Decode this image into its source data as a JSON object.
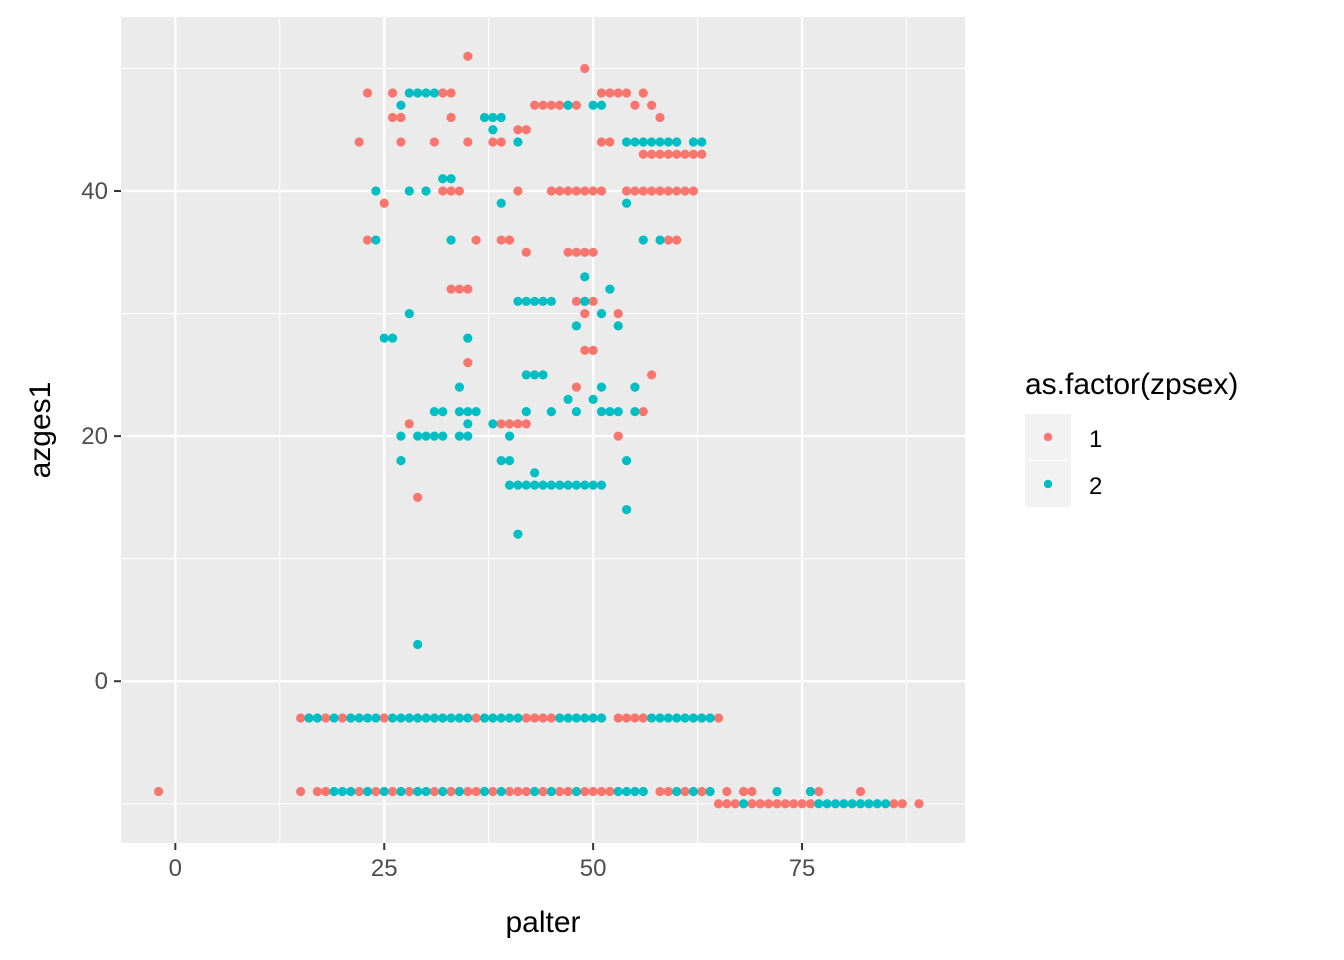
{
  "chart_data": {
    "type": "scatter",
    "title": "",
    "xlabel": "palter",
    "ylabel": "azges1",
    "xlim": [
      -6.5,
      94.5
    ],
    "ylim": [
      -13.2,
      54.2
    ],
    "x_ticks": [
      0,
      25,
      50,
      75
    ],
    "x_tick_labels": [
      "0",
      "25",
      "50",
      "75"
    ],
    "y_ticks": [
      0,
      20,
      40
    ],
    "y_tick_labels": [
      "0",
      "20",
      "40"
    ],
    "grid": true,
    "legend": {
      "title": "as.factor(zpsex)",
      "placement": "right",
      "entries": [
        "1",
        "2"
      ]
    },
    "series": [
      {
        "name": "1",
        "color": "#F8766D",
        "points": [
          [
            -2,
            -9
          ],
          [
            15,
            -3
          ],
          [
            18,
            -3
          ],
          [
            20,
            -3
          ],
          [
            25,
            -3
          ],
          [
            36,
            -3
          ],
          [
            42,
            -3
          ],
          [
            43,
            -3
          ],
          [
            44,
            -3
          ],
          [
            45,
            -3
          ],
          [
            53,
            -3
          ],
          [
            54,
            -3
          ],
          [
            55,
            -3
          ],
          [
            56,
            -3
          ],
          [
            65,
            -3
          ],
          [
            15,
            -9
          ],
          [
            17,
            -9
          ],
          [
            18,
            -9
          ],
          [
            22,
            -9
          ],
          [
            24,
            -9
          ],
          [
            26,
            -9
          ],
          [
            28,
            -9
          ],
          [
            31,
            -9
          ],
          [
            33,
            -9
          ],
          [
            35,
            -9
          ],
          [
            36,
            -9
          ],
          [
            38,
            -9
          ],
          [
            40,
            -9
          ],
          [
            41,
            -9
          ],
          [
            42,
            -9
          ],
          [
            44,
            -9
          ],
          [
            46,
            -9
          ],
          [
            47,
            -9
          ],
          [
            49,
            -9
          ],
          [
            50,
            -9
          ],
          [
            51,
            -9
          ],
          [
            52,
            -9
          ],
          [
            58,
            -9
          ],
          [
            59,
            -9
          ],
          [
            61,
            -9
          ],
          [
            63,
            -9
          ],
          [
            66,
            -9
          ],
          [
            68,
            -9
          ],
          [
            69,
            -9
          ],
          [
            77,
            -9
          ],
          [
            82,
            -9
          ],
          [
            65,
            -10
          ],
          [
            66,
            -10
          ],
          [
            67,
            -10
          ],
          [
            69,
            -10
          ],
          [
            70,
            -10
          ],
          [
            71,
            -10
          ],
          [
            72,
            -10
          ],
          [
            73,
            -10
          ],
          [
            74,
            -10
          ],
          [
            75,
            -10
          ],
          [
            76,
            -10
          ],
          [
            86,
            -10
          ],
          [
            87,
            -10
          ],
          [
            89,
            -10
          ],
          [
            29,
            15
          ],
          [
            53,
            20
          ],
          [
            42,
            21
          ],
          [
            41,
            21
          ],
          [
            40,
            21
          ],
          [
            28,
            21
          ],
          [
            39,
            21
          ],
          [
            56,
            22
          ],
          [
            48,
            24
          ],
          [
            35,
            26
          ],
          [
            49,
            27
          ],
          [
            50,
            27
          ],
          [
            57,
            25
          ],
          [
            33,
            32
          ],
          [
            34,
            32
          ],
          [
            35,
            32
          ],
          [
            50,
            31
          ],
          [
            48,
            31
          ],
          [
            49,
            31
          ],
          [
            49,
            30
          ],
          [
            53,
            30
          ],
          [
            23,
            36
          ],
          [
            36,
            36
          ],
          [
            39,
            36
          ],
          [
            40,
            36
          ],
          [
            42,
            35
          ],
          [
            47,
            35
          ],
          [
            48,
            35
          ],
          [
            49,
            35
          ],
          [
            50,
            35
          ],
          [
            59,
            36
          ],
          [
            60,
            36
          ],
          [
            25,
            39
          ],
          [
            41,
            40
          ],
          [
            45,
            40
          ],
          [
            46,
            40
          ],
          [
            47,
            40
          ],
          [
            48,
            40
          ],
          [
            49,
            40
          ],
          [
            50,
            40
          ],
          [
            51,
            40
          ],
          [
            54,
            40
          ],
          [
            56,
            40
          ],
          [
            57,
            40
          ],
          [
            58,
            40
          ],
          [
            59,
            40
          ],
          [
            60,
            40
          ],
          [
            61,
            40
          ],
          [
            62,
            40
          ],
          [
            55,
            40
          ],
          [
            32,
            40
          ],
          [
            33,
            40
          ],
          [
            34,
            40
          ],
          [
            22,
            44
          ],
          [
            27,
            44
          ],
          [
            31,
            44
          ],
          [
            33,
            46
          ],
          [
            35,
            44
          ],
          [
            38,
            44
          ],
          [
            39,
            44
          ],
          [
            41,
            45
          ],
          [
            42,
            45
          ],
          [
            51,
            44
          ],
          [
            52,
            44
          ],
          [
            26,
            46
          ],
          [
            27,
            46
          ],
          [
            56,
            43
          ],
          [
            57,
            43
          ],
          [
            58,
            43
          ],
          [
            59,
            43
          ],
          [
            60,
            43
          ],
          [
            61,
            43
          ],
          [
            62,
            43
          ],
          [
            63,
            43
          ],
          [
            43,
            47
          ],
          [
            44,
            47
          ],
          [
            45,
            47
          ],
          [
            46,
            47
          ],
          [
            47,
            47
          ],
          [
            48,
            47
          ],
          [
            51,
            48
          ],
          [
            52,
            48
          ],
          [
            53,
            48
          ],
          [
            54,
            48
          ],
          [
            56,
            48
          ],
          [
            58,
            46
          ],
          [
            57,
            47
          ],
          [
            55,
            47
          ],
          [
            23,
            48
          ],
          [
            26,
            48
          ],
          [
            32,
            48
          ],
          [
            33,
            48
          ],
          [
            35,
            51
          ],
          [
            49,
            50
          ]
        ]
      },
      {
        "name": "2",
        "color": "#00BFC4",
        "points": [
          [
            16,
            -3
          ],
          [
            17,
            -3
          ],
          [
            19,
            -3
          ],
          [
            21,
            -3
          ],
          [
            22,
            -3
          ],
          [
            23,
            -3
          ],
          [
            24,
            -3
          ],
          [
            26,
            -3
          ],
          [
            27,
            -3
          ],
          [
            28,
            -3
          ],
          [
            29,
            -3
          ],
          [
            30,
            -3
          ],
          [
            31,
            -3
          ],
          [
            32,
            -3
          ],
          [
            33,
            -3
          ],
          [
            34,
            -3
          ],
          [
            35,
            -3
          ],
          [
            37,
            -3
          ],
          [
            38,
            -3
          ],
          [
            39,
            -3
          ],
          [
            40,
            -3
          ],
          [
            41,
            -3
          ],
          [
            46,
            -3
          ],
          [
            47,
            -3
          ],
          [
            48,
            -3
          ],
          [
            49,
            -3
          ],
          [
            50,
            -3
          ],
          [
            51,
            -3
          ],
          [
            57,
            -3
          ],
          [
            58,
            -3
          ],
          [
            59,
            -3
          ],
          [
            60,
            -3
          ],
          [
            61,
            -3
          ],
          [
            62,
            -3
          ],
          [
            63,
            -3
          ],
          [
            64,
            -3
          ],
          [
            19,
            -9
          ],
          [
            20,
            -9
          ],
          [
            21,
            -9
          ],
          [
            23,
            -9
          ],
          [
            25,
            -9
          ],
          [
            27,
            -9
          ],
          [
            29,
            -9
          ],
          [
            30,
            -9
          ],
          [
            32,
            -9
          ],
          [
            34,
            -9
          ],
          [
            37,
            -9
          ],
          [
            39,
            -9
          ],
          [
            43,
            -9
          ],
          [
            45,
            -9
          ],
          [
            48,
            -9
          ],
          [
            53,
            -9
          ],
          [
            54,
            -9
          ],
          [
            55,
            -9
          ],
          [
            56,
            -9
          ],
          [
            60,
            -9
          ],
          [
            62,
            -9
          ],
          [
            64,
            -9
          ],
          [
            72,
            -9
          ],
          [
            76,
            -9
          ],
          [
            68,
            -10
          ],
          [
            77,
            -10
          ],
          [
            78,
            -10
          ],
          [
            79,
            -10
          ],
          [
            80,
            -10
          ],
          [
            81,
            -10
          ],
          [
            82,
            -10
          ],
          [
            83,
            -10
          ],
          [
            84,
            -10
          ],
          [
            85,
            -10
          ],
          [
            29,
            3
          ],
          [
            41,
            12
          ],
          [
            54,
            14
          ],
          [
            40,
            16
          ],
          [
            41,
            16
          ],
          [
            42,
            16
          ],
          [
            43,
            16
          ],
          [
            44,
            16
          ],
          [
            45,
            16
          ],
          [
            46,
            16
          ],
          [
            47,
            16
          ],
          [
            48,
            16
          ],
          [
            49,
            16
          ],
          [
            50,
            16
          ],
          [
            51,
            16
          ],
          [
            43,
            17
          ],
          [
            27,
            18
          ],
          [
            39,
            18
          ],
          [
            40,
            18
          ],
          [
            54,
            18
          ],
          [
            27,
            20
          ],
          [
            29,
            20
          ],
          [
            30,
            20
          ],
          [
            31,
            20
          ],
          [
            32,
            20
          ],
          [
            34,
            20
          ],
          [
            35,
            20
          ],
          [
            40,
            20
          ],
          [
            31,
            22
          ],
          [
            32,
            22
          ],
          [
            34,
            22
          ],
          [
            35,
            22
          ],
          [
            36,
            22
          ],
          [
            42,
            22
          ],
          [
            45,
            22
          ],
          [
            48,
            22
          ],
          [
            51,
            22
          ],
          [
            52,
            22
          ],
          [
            53,
            22
          ],
          [
            55,
            22
          ],
          [
            35,
            21
          ],
          [
            47,
            23
          ],
          [
            50,
            23
          ],
          [
            51,
            24
          ],
          [
            34,
            24
          ],
          [
            55,
            24
          ],
          [
            38,
            21
          ],
          [
            42,
            25
          ],
          [
            43,
            25
          ],
          [
            44,
            25
          ],
          [
            25,
            28
          ],
          [
            26,
            28
          ],
          [
            35,
            28
          ],
          [
            28,
            30
          ],
          [
            48,
            29
          ],
          [
            53,
            29
          ],
          [
            51,
            30
          ],
          [
            49,
            31
          ],
          [
            52,
            32
          ],
          [
            41,
            31
          ],
          [
            42,
            31
          ],
          [
            43,
            31
          ],
          [
            44,
            31
          ],
          [
            45,
            31
          ],
          [
            49,
            33
          ],
          [
            24,
            36
          ],
          [
            33,
            36
          ],
          [
            56,
            36
          ],
          [
            58,
            36
          ],
          [
            24,
            40
          ],
          [
            28,
            40
          ],
          [
            30,
            40
          ],
          [
            39,
            39
          ],
          [
            54,
            39
          ],
          [
            32,
            41
          ],
          [
            33,
            41
          ],
          [
            54,
            44
          ],
          [
            55,
            44
          ],
          [
            56,
            44
          ],
          [
            57,
            44
          ],
          [
            58,
            44
          ],
          [
            59,
            44
          ],
          [
            60,
            44
          ],
          [
            62,
            44
          ],
          [
            63,
            44
          ],
          [
            41,
            44
          ],
          [
            27,
            47
          ],
          [
            28,
            48
          ],
          [
            29,
            48
          ],
          [
            30,
            48
          ],
          [
            31,
            48
          ],
          [
            37,
            46
          ],
          [
            38,
            46
          ],
          [
            39,
            46
          ],
          [
            47,
            47
          ],
          [
            50,
            47
          ],
          [
            51,
            47
          ],
          [
            38,
            45
          ]
        ]
      }
    ]
  }
}
